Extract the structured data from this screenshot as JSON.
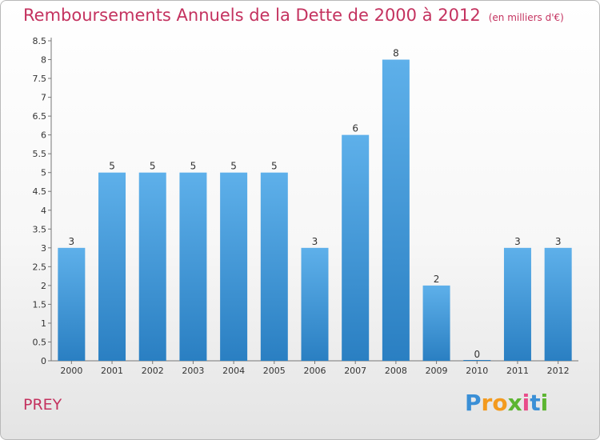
{
  "header": {
    "title": "Remboursements Annuels de la Dette de 2000 à 2012",
    "unit": "(en milliers d'€)"
  },
  "footer": {
    "place": "PREY",
    "logo_letters": [
      "P",
      "r",
      "o",
      "x",
      "i",
      "t",
      "i"
    ],
    "logo_colors": [
      "#3a8fd6",
      "#f39a1e",
      "#f39a1e",
      "#5cb531",
      "#e84d8a",
      "#3a8fd6",
      "#5cb531"
    ]
  },
  "colors": {
    "bar_top": "#5eb0ea",
    "bar_bottom": "#2a7fc2",
    "title": "#c4325f"
  },
  "chart_data": {
    "type": "bar",
    "title": "Remboursements Annuels de la Dette de 2000 à 2012",
    "subtitle": "(en milliers d'€)",
    "categories": [
      "2000",
      "2001",
      "2002",
      "2003",
      "2004",
      "2005",
      "2006",
      "2007",
      "2008",
      "2009",
      "2010",
      "2011",
      "2012"
    ],
    "values": [
      3,
      5,
      5,
      5,
      5,
      5,
      3,
      6,
      8,
      2,
      0,
      3,
      3
    ],
    "ylim": [
      0,
      8.5
    ],
    "yticks": [
      "0",
      "0.5",
      "1",
      "1.5",
      "2",
      "2.5",
      "3",
      "3.5",
      "4",
      "4.5",
      "5",
      "5.5",
      "6",
      "6.5",
      "7",
      "7.5",
      "8",
      "8.5"
    ],
    "ytick_values": [
      0,
      0.5,
      1,
      1.5,
      2,
      2.5,
      3,
      3.5,
      4,
      4.5,
      5,
      5.5,
      6,
      6.5,
      7,
      7.5,
      8,
      8.5
    ],
    "xlabel": "",
    "ylabel": "",
    "grid": false,
    "data_labels": true
  }
}
